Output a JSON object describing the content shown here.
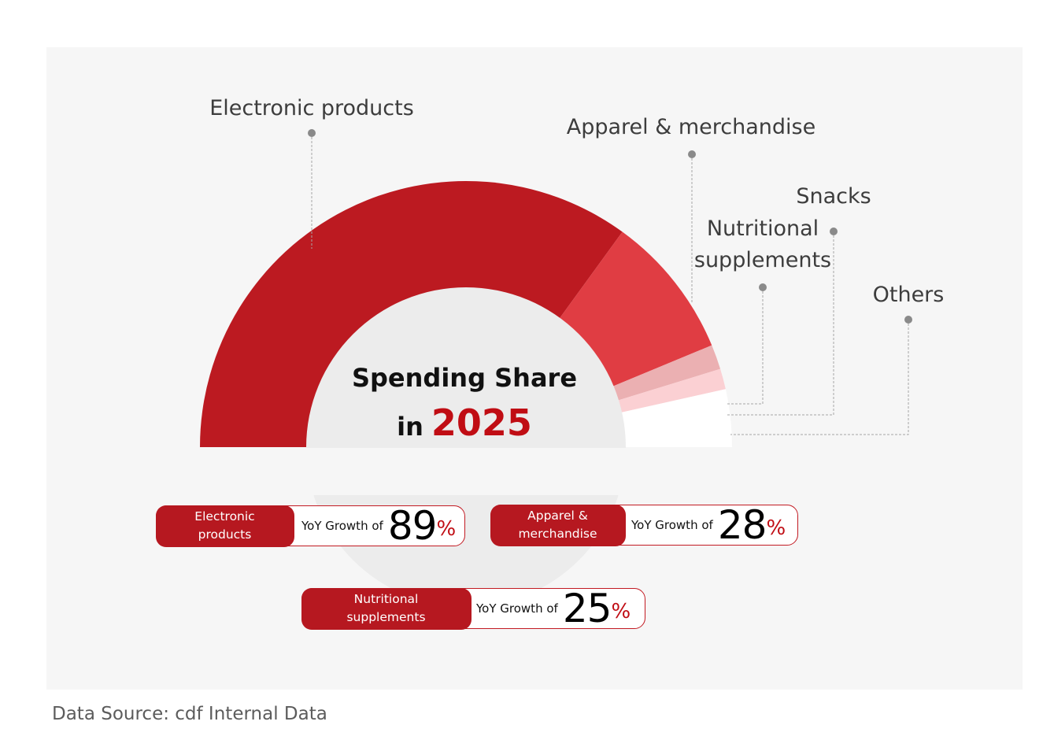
{
  "chart_data": {
    "type": "pie",
    "subtype": "semi-donut",
    "title_line1": "Spending Share",
    "title_line2_prefix": "in",
    "title_year": "2025",
    "slices": [
      {
        "label": "Electronic products",
        "share": 70,
        "color": "#bc1a21"
      },
      {
        "label": "Apparel & merchandise",
        "share": 17.5,
        "color": "#e03d43"
      },
      {
        "label": "Nutritional supplements",
        "share": 3,
        "color": "#ebb0b2"
      },
      {
        "label": "Snacks",
        "share": 2.5,
        "color": "#fbd0d3"
      },
      {
        "label": "Others",
        "share": 7,
        "color": "#ffffff"
      }
    ]
  },
  "labels": {
    "electronic": "Electronic products",
    "apparel": "Apparel & merchandise",
    "snacks": "Snacks",
    "nutritional_line1": "Nutritional",
    "nutritional_line2": "supplements",
    "others": "Others"
  },
  "growth": [
    {
      "category": "Electronic\nproducts",
      "prefix": "YoY Growth of",
      "value": "89",
      "unit": "%"
    },
    {
      "category": "Apparel &\nmerchandise",
      "prefix": "YoY Growth of",
      "value": "28",
      "unit": "%"
    },
    {
      "category": "Nutritional\nsupplements",
      "prefix": "YoY Growth of",
      "value": "25",
      "unit": "%"
    }
  ],
  "source": "Data Source: cdf Internal Data"
}
